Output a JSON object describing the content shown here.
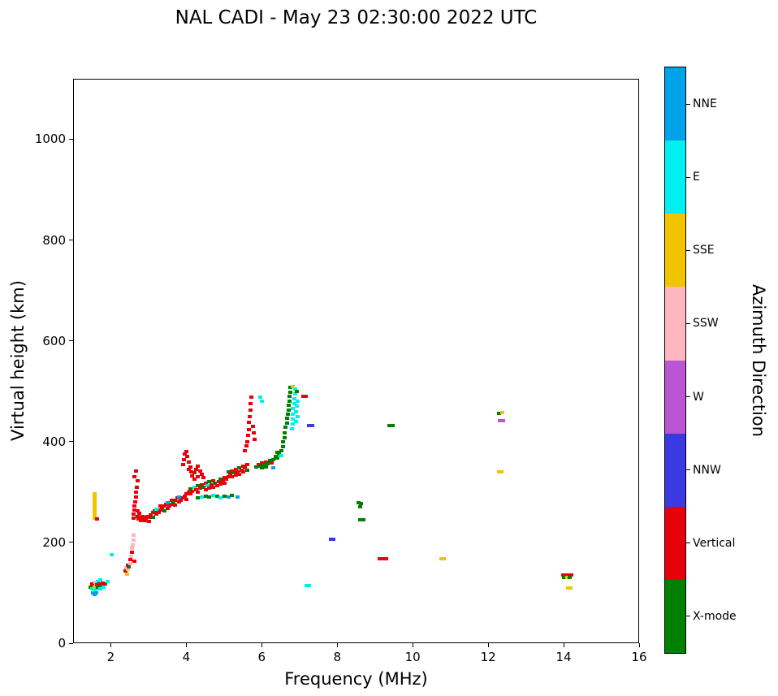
{
  "chart_data": {
    "type": "scatter",
    "title": "NAL CADI - May 23 02:30:00 2022 UTC",
    "xlabel": "Frequency (MHz)",
    "ylabel": "Virtual height (km)",
    "xlim": [
      1,
      16
    ],
    "ylim": [
      0,
      1120
    ],
    "xticks": [
      2,
      4,
      6,
      8,
      10,
      12,
      14,
      16
    ],
    "yticks": [
      0,
      200,
      400,
      600,
      800,
      1000
    ],
    "grid": false,
    "marker": "square",
    "marker_size_px": 4,
    "colorbar": {
      "label": "Azimuth Direction",
      "position": "right",
      "categories": [
        {
          "name": "NNE",
          "color": "#00A2E8"
        },
        {
          "name": "E",
          "color": "#00F0F0"
        },
        {
          "name": "SSE",
          "color": "#F0C400"
        },
        {
          "name": "SSW",
          "color": "#FFB6C1"
        },
        {
          "name": "W",
          "color": "#BA55D3"
        },
        {
          "name": "NNW",
          "color": "#3A3AE0"
        },
        {
          "name": "Vertical",
          "color": "#E8000B"
        },
        {
          "name": "X-mode",
          "color": "#008000"
        }
      ]
    },
    "points_format": [
      "frequency_MHz",
      "virtual_height_km",
      "category_index"
    ],
    "points": [
      [
        1.45,
        112,
        7
      ],
      [
        1.5,
        108,
        1
      ],
      [
        1.5,
        118,
        6
      ],
      [
        1.52,
        100,
        0
      ],
      [
        1.55,
        96,
        0
      ],
      [
        1.55,
        104,
        1
      ],
      [
        1.57,
        112,
        2
      ],
      [
        1.58,
        121,
        3
      ],
      [
        1.6,
        100,
        0
      ],
      [
        1.6,
        108,
        1
      ],
      [
        1.62,
        116,
        6
      ],
      [
        1.65,
        112,
        7
      ],
      [
        1.65,
        122,
        1
      ],
      [
        1.68,
        118,
        6
      ],
      [
        1.7,
        108,
        1
      ],
      [
        1.72,
        126,
        1
      ],
      [
        1.75,
        115,
        7
      ],
      [
        1.78,
        120,
        6
      ],
      [
        1.8,
        112,
        1
      ],
      [
        1.85,
        118,
        6
      ],
      [
        1.9,
        122,
        1
      ],
      [
        2.02,
        176,
        1
      ],
      [
        1.55,
        248,
        2
      ],
      [
        1.55,
        254,
        2
      ],
      [
        1.55,
        260,
        2
      ],
      [
        1.55,
        266,
        2
      ],
      [
        1.55,
        272,
        2
      ],
      [
        1.55,
        278,
        2
      ],
      [
        1.55,
        284,
        2
      ],
      [
        1.55,
        290,
        2
      ],
      [
        1.55,
        296,
        2
      ],
      [
        1.62,
        247,
        6
      ],
      [
        2.38,
        143,
        6
      ],
      [
        2.4,
        150,
        3
      ],
      [
        2.42,
        137,
        2
      ],
      [
        2.45,
        155,
        6
      ],
      [
        2.45,
        147,
        3
      ],
      [
        2.47,
        152,
        7
      ],
      [
        2.5,
        158,
        3
      ],
      [
        2.5,
        166,
        6
      ],
      [
        2.52,
        173,
        3
      ],
      [
        2.55,
        180,
        6
      ],
      [
        2.55,
        188,
        3
      ],
      [
        2.58,
        195,
        3
      ],
      [
        2.6,
        205,
        3
      ],
      [
        2.6,
        215,
        3
      ],
      [
        2.62,
        162,
        6
      ],
      [
        2.6,
        248,
        6
      ],
      [
        2.6,
        256,
        6
      ],
      [
        2.62,
        264,
        6
      ],
      [
        2.62,
        272,
        6
      ],
      [
        2.64,
        280,
        6
      ],
      [
        2.65,
        290,
        6
      ],
      [
        2.65,
        300,
        6
      ],
      [
        2.67,
        310,
        6
      ],
      [
        2.7,
        262,
        6
      ],
      [
        2.7,
        252,
        6
      ],
      [
        2.72,
        246,
        6
      ],
      [
        2.75,
        250,
        6
      ],
      [
        2.75,
        258,
        6
      ],
      [
        2.78,
        244,
        6
      ],
      [
        2.8,
        248,
        6
      ],
      [
        2.82,
        252,
        6
      ],
      [
        2.85,
        246,
        6
      ],
      [
        2.88,
        250,
        6
      ],
      [
        2.9,
        244,
        6
      ],
      [
        2.92,
        248,
        6
      ],
      [
        2.95,
        252,
        6
      ],
      [
        3.0,
        250,
        6
      ],
      [
        3.0,
        242,
        6
      ],
      [
        2.62,
        330,
        6
      ],
      [
        2.66,
        342,
        6
      ],
      [
        2.7,
        322,
        6
      ],
      [
        3.05,
        255,
        6
      ],
      [
        3.1,
        260,
        6
      ],
      [
        3.1,
        250,
        7
      ],
      [
        3.15,
        262,
        6
      ],
      [
        3.2,
        256,
        6
      ],
      [
        3.2,
        266,
        1
      ],
      [
        3.25,
        260,
        6
      ],
      [
        3.3,
        264,
        6
      ],
      [
        3.3,
        272,
        6
      ],
      [
        3.35,
        268,
        6
      ],
      [
        3.4,
        262,
        7
      ],
      [
        3.4,
        272,
        6
      ],
      [
        3.45,
        275,
        6
      ],
      [
        3.5,
        268,
        6
      ],
      [
        3.5,
        278,
        0
      ],
      [
        3.55,
        272,
        6
      ],
      [
        3.6,
        276,
        6
      ],
      [
        3.6,
        284,
        6
      ],
      [
        3.65,
        280,
        7
      ],
      [
        3.7,
        274,
        6
      ],
      [
        3.7,
        284,
        6
      ],
      [
        3.75,
        288,
        6
      ],
      [
        3.8,
        280,
        6
      ],
      [
        3.8,
        290,
        0
      ],
      [
        3.85,
        284,
        6
      ],
      [
        3.9,
        288,
        6
      ],
      [
        3.95,
        292,
        6
      ],
      [
        4.0,
        286,
        6
      ],
      [
        4.0,
        296,
        6
      ],
      [
        3.9,
        355,
        6
      ],
      [
        3.92,
        365,
        6
      ],
      [
        3.95,
        375,
        6
      ],
      [
        4.0,
        380,
        6
      ],
      [
        4.02,
        370,
        6
      ],
      [
        4.05,
        360,
        6
      ],
      [
        4.05,
        345,
        6
      ],
      [
        4.1,
        350,
        6
      ],
      [
        4.12,
        340,
        6
      ],
      [
        4.15,
        332,
        6
      ],
      [
        4.2,
        338,
        6
      ],
      [
        4.25,
        345,
        6
      ],
      [
        4.3,
        352,
        6
      ],
      [
        4.35,
        342,
        6
      ],
      [
        4.2,
        325,
        6
      ],
      [
        4.3,
        330,
        6
      ],
      [
        4.4,
        335,
        6
      ],
      [
        4.45,
        328,
        6
      ],
      [
        4.05,
        300,
        6
      ],
      [
        4.1,
        306,
        7
      ],
      [
        4.1,
        296,
        6
      ],
      [
        4.15,
        302,
        6
      ],
      [
        4.2,
        310,
        1
      ],
      [
        4.25,
        305,
        6
      ],
      [
        4.3,
        300,
        6
      ],
      [
        4.3,
        312,
        7
      ],
      [
        4.35,
        308,
        6
      ],
      [
        4.4,
        315,
        6
      ],
      [
        4.45,
        310,
        7
      ],
      [
        4.5,
        305,
        6
      ],
      [
        4.5,
        318,
        6
      ],
      [
        4.55,
        312,
        1
      ],
      [
        4.6,
        308,
        6
      ],
      [
        4.6,
        320,
        7
      ],
      [
        4.65,
        315,
        6
      ],
      [
        4.7,
        310,
        6
      ],
      [
        4.7,
        322,
        6
      ],
      [
        4.75,
        318,
        7
      ],
      [
        4.8,
        312,
        6
      ],
      [
        4.85,
        320,
        6
      ],
      [
        4.9,
        316,
        6
      ],
      [
        4.9,
        326,
        7
      ],
      [
        4.95,
        322,
        6
      ],
      [
        5.0,
        318,
        6
      ],
      [
        5.0,
        328,
        6
      ],
      [
        4.3,
        288,
        7
      ],
      [
        4.4,
        290,
        1
      ],
      [
        4.5,
        292,
        7
      ],
      [
        4.6,
        290,
        7
      ],
      [
        4.7,
        293,
        1
      ],
      [
        4.8,
        291,
        7
      ],
      [
        4.9,
        289,
        1
      ],
      [
        5.0,
        292,
        7
      ],
      [
        5.1,
        290,
        0
      ],
      [
        5.2,
        293,
        7
      ],
      [
        5.05,
        325,
        6
      ],
      [
        5.1,
        330,
        6
      ],
      [
        5.1,
        340,
        7
      ],
      [
        5.15,
        335,
        6
      ],
      [
        5.2,
        330,
        6
      ],
      [
        5.2,
        342,
        6
      ],
      [
        5.25,
        338,
        7
      ],
      [
        5.3,
        334,
        6
      ],
      [
        5.3,
        345,
        6
      ],
      [
        5.35,
        340,
        6
      ],
      [
        5.4,
        336,
        6
      ],
      [
        5.4,
        348,
        7
      ],
      [
        5.45,
        344,
        6
      ],
      [
        5.5,
        340,
        6
      ],
      [
        5.5,
        352,
        6
      ],
      [
        5.55,
        348,
        6
      ],
      [
        5.6,
        344,
        7
      ],
      [
        5.6,
        355,
        6
      ],
      [
        5.35,
        290,
        0
      ],
      [
        5.55,
        382,
        6
      ],
      [
        5.58,
        392,
        6
      ],
      [
        5.6,
        400,
        6
      ],
      [
        5.62,
        412,
        6
      ],
      [
        5.65,
        424,
        6
      ],
      [
        5.65,
        438,
        6
      ],
      [
        5.68,
        450,
        6
      ],
      [
        5.7,
        462,
        6
      ],
      [
        5.7,
        475,
        6
      ],
      [
        5.72,
        488,
        6
      ],
      [
        5.75,
        430,
        6
      ],
      [
        5.78,
        418,
        6
      ],
      [
        5.8,
        405,
        6
      ],
      [
        5.95,
        488,
        1
      ],
      [
        6.0,
        480,
        1
      ],
      [
        5.85,
        350,
        7
      ],
      [
        5.9,
        355,
        6
      ],
      [
        5.95,
        352,
        7
      ],
      [
        6.0,
        358,
        6
      ],
      [
        6.0,
        348,
        7
      ],
      [
        6.05,
        354,
        7
      ],
      [
        6.1,
        360,
        6
      ],
      [
        6.1,
        350,
        7
      ],
      [
        6.15,
        356,
        7
      ],
      [
        6.2,
        362,
        7
      ],
      [
        6.25,
        358,
        6
      ],
      [
        6.3,
        364,
        7
      ],
      [
        6.3,
        348,
        0
      ],
      [
        6.35,
        370,
        7
      ],
      [
        6.4,
        368,
        7
      ],
      [
        6.4,
        378,
        7
      ],
      [
        6.45,
        375,
        7
      ],
      [
        6.5,
        382,
        7
      ],
      [
        6.5,
        372,
        1
      ],
      [
        6.55,
        390,
        7
      ],
      [
        6.55,
        400,
        7
      ],
      [
        6.6,
        408,
        7
      ],
      [
        6.6,
        418,
        7
      ],
      [
        6.62,
        428,
        7
      ],
      [
        6.65,
        436,
        7
      ],
      [
        6.65,
        446,
        7
      ],
      [
        6.68,
        455,
        7
      ],
      [
        6.7,
        462,
        7
      ],
      [
        6.7,
        472,
        7
      ],
      [
        6.72,
        480,
        7
      ],
      [
        6.72,
        490,
        7
      ],
      [
        6.75,
        498,
        7
      ],
      [
        6.75,
        508,
        7
      ],
      [
        6.78,
        425,
        1
      ],
      [
        6.8,
        435,
        1
      ],
      [
        6.8,
        445,
        1
      ],
      [
        6.82,
        455,
        1
      ],
      [
        6.82,
        465,
        1
      ],
      [
        6.85,
        475,
        1
      ],
      [
        6.85,
        485,
        1
      ],
      [
        6.88,
        495,
        1
      ],
      [
        6.88,
        505,
        1
      ],
      [
        6.9,
        460,
        1
      ],
      [
        6.9,
        440,
        1
      ],
      [
        6.92,
        470,
        1
      ],
      [
        6.95,
        480,
        1
      ],
      [
        6.95,
        450,
        1
      ],
      [
        6.8,
        510,
        2
      ],
      [
        6.92,
        500,
        7
      ],
      [
        7.1,
        490,
        6
      ],
      [
        7.15,
        490,
        6
      ],
      [
        7.25,
        432,
        5
      ],
      [
        7.32,
        432,
        5
      ],
      [
        7.82,
        207,
        5
      ],
      [
        7.88,
        207,
        5
      ],
      [
        7.18,
        115,
        1
      ],
      [
        7.25,
        115,
        1
      ],
      [
        8.55,
        278,
        7
      ],
      [
        8.62,
        277,
        7
      ],
      [
        8.6,
        270,
        7
      ],
      [
        8.6,
        245,
        7
      ],
      [
        8.68,
        245,
        7
      ],
      [
        9.12,
        168,
        6
      ],
      [
        9.2,
        168,
        6
      ],
      [
        9.28,
        168,
        6
      ],
      [
        9.38,
        432,
        7
      ],
      [
        9.45,
        432,
        7
      ],
      [
        10.75,
        168,
        2
      ],
      [
        10.82,
        168,
        2
      ],
      [
        12.28,
        456,
        7
      ],
      [
        12.36,
        457,
        2
      ],
      [
        12.3,
        441,
        4
      ],
      [
        12.38,
        441,
        4
      ],
      [
        12.28,
        340,
        2
      ],
      [
        12.35,
        340,
        2
      ],
      [
        13.98,
        136,
        6
      ],
      [
        14.05,
        136,
        6
      ],
      [
        14.12,
        136,
        6
      ],
      [
        14.2,
        136,
        6
      ],
      [
        14.0,
        131,
        7
      ],
      [
        14.08,
        131,
        2
      ],
      [
        14.15,
        131,
        7
      ],
      [
        14.1,
        110,
        2
      ],
      [
        14.18,
        110,
        2
      ]
    ]
  }
}
